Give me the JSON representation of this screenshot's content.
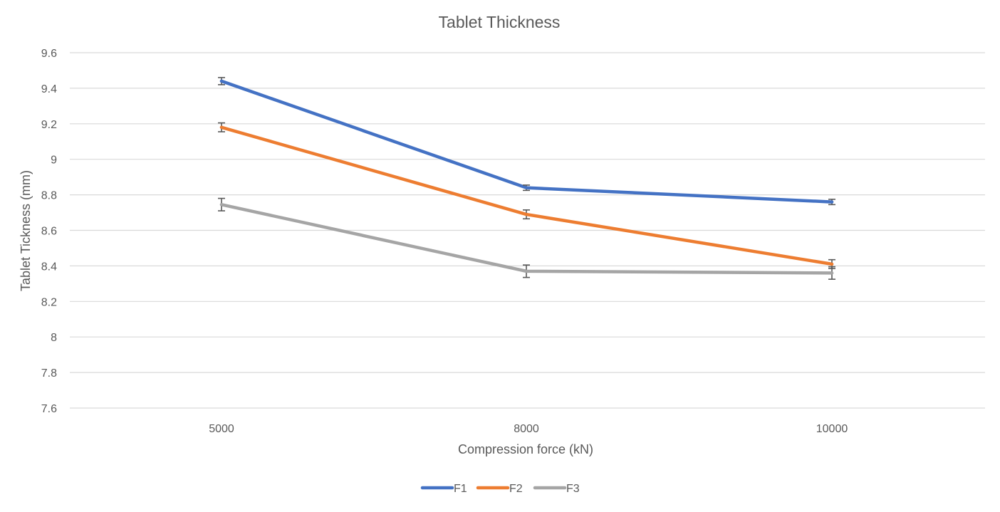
{
  "chart_data": {
    "type": "line",
    "title": "Tablet Thickness",
    "xlabel": "Compression force (kN)",
    "ylabel": "Tablet Tickness (mm)",
    "categories": [
      "5000",
      "8000",
      "10000"
    ],
    "ylim": [
      7.6,
      9.6
    ],
    "yticks": [
      "9.6",
      "9.4",
      "9.2",
      "9",
      "8.8",
      "8.6",
      "8.4",
      "8.2",
      "8",
      "7.8",
      "7.6"
    ],
    "grid": true,
    "legend_position": "bottom",
    "series": [
      {
        "name": "F1",
        "color": "#4472C4",
        "values": [
          9.44,
          8.84,
          8.76
        ],
        "errors": [
          0.02,
          0.015,
          0.015
        ]
      },
      {
        "name": "F2",
        "color": "#ED7D31",
        "values": [
          9.18,
          8.69,
          8.41
        ],
        "errors": [
          0.025,
          0.025,
          0.025
        ]
      },
      {
        "name": "F3",
        "color": "#A5A5A5",
        "values": [
          8.745,
          8.37,
          8.36
        ],
        "errors": [
          0.035,
          0.035,
          0.035
        ]
      }
    ]
  }
}
